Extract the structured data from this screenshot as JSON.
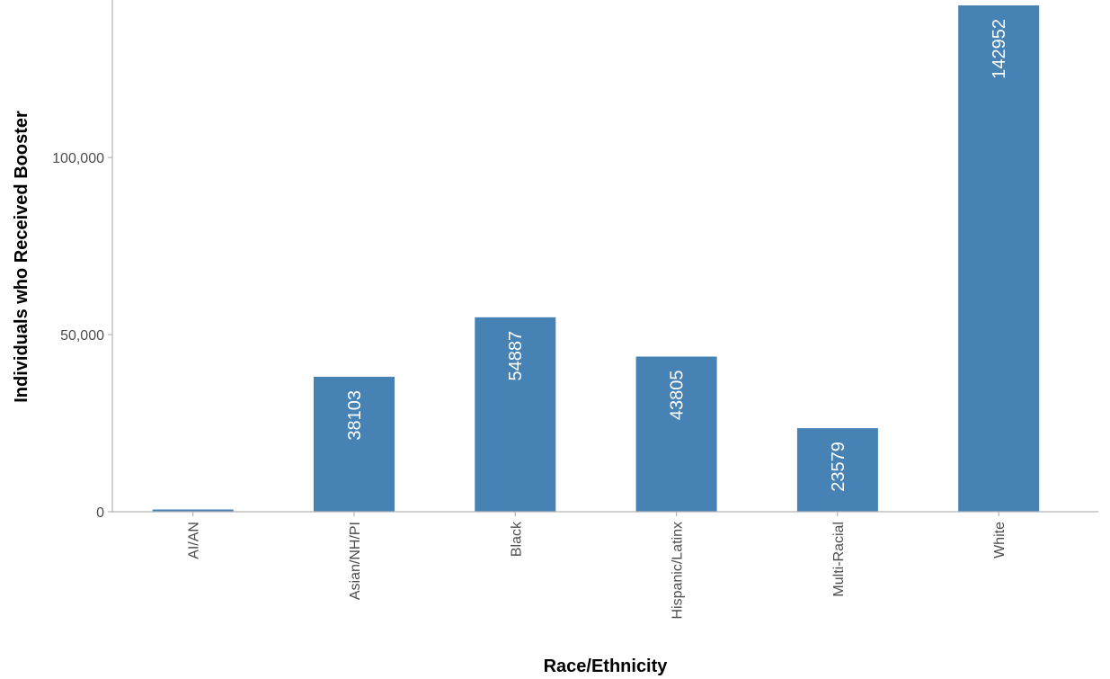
{
  "chart_data": {
    "type": "bar",
    "title": "",
    "xlabel": "Race/Ethnicity",
    "ylabel": "Individuals who Received Booster",
    "categories": [
      "AI/AN",
      "Asian/NH/PI",
      "Black",
      "Hispanic/Latinx",
      "Multi-Racial",
      "White"
    ],
    "values": [
      634,
      38103,
      54887,
      43805,
      23579,
      142952
    ],
    "data_labels": [
      "",
      "38103",
      "54887",
      "43805",
      "23579",
      "142952"
    ],
    "yticks": [
      0,
      50000,
      100000
    ],
    "ytick_labels": [
      "0",
      "50,000",
      "100,000"
    ],
    "ylim": [
      0,
      142952
    ],
    "grid": false,
    "legend": "none",
    "bar_color": "#4682b4",
    "axis_color": "#b3b3b3"
  }
}
